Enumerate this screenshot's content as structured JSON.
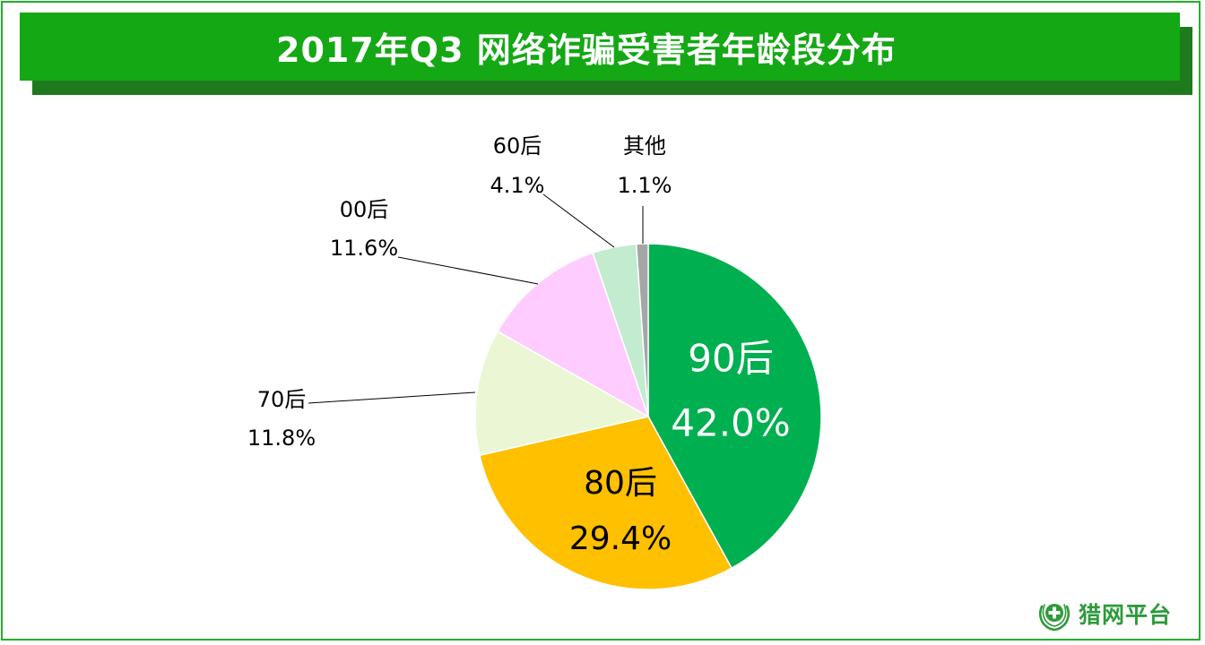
{
  "title": "2017年Q3 网络诈骗受害者年龄段分布",
  "logo_text": "猎网平台",
  "chart_data": {
    "type": "pie",
    "title": "2017年Q3 网络诈骗受害者年龄段分布",
    "slices": [
      {
        "label": "90后",
        "value": 42.0,
        "value_label": "42.0%",
        "color": "#00b050",
        "label_color": "#ffffff",
        "placement": "inside"
      },
      {
        "label": "80后",
        "value": 29.4,
        "value_label": "29.4%",
        "color": "#ffc000",
        "label_color": "#000000",
        "placement": "inside"
      },
      {
        "label": "70后",
        "value": 11.8,
        "value_label": "11.8%",
        "color": "#ebf6d5",
        "label_color": "#000000",
        "placement": "outside"
      },
      {
        "label": "00后",
        "value": 11.6,
        "value_label": "11.6%",
        "color": "#ffccff",
        "label_color": "#000000",
        "placement": "outside"
      },
      {
        "label": "60后",
        "value": 4.1,
        "value_label": "4.1%",
        "color": "#c3ebd0",
        "label_color": "#000000",
        "placement": "outside"
      },
      {
        "label": "其他",
        "value": 1.1,
        "value_label": "1.1%",
        "color": "#a6a6a6",
        "label_color": "#000000",
        "placement": "outside"
      }
    ],
    "start": "12 o'clock",
    "direction": "clockwise",
    "legend": "none"
  }
}
